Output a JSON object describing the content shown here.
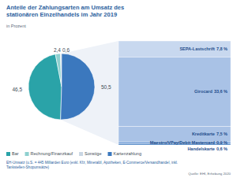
{
  "chart_data": [
    {
      "type": "pie",
      "title": "Anteile der Zahlungsarten am Umsatz des stationären Einzelhandels im Jahr 2019",
      "subtitle": "in Prozent",
      "categories": [
        "Bar",
        "Rechnung/Finanzkauf",
        "Sonstige",
        "Kartenzahlung"
      ],
      "values": [
        46.5,
        2.4,
        0.6,
        50.5
      ],
      "value_labels": [
        "46,5",
        "2,4",
        "0,6",
        "50,5"
      ],
      "colors": [
        "#2aa3a8",
        "#8fd0cf",
        "#c9d6e3",
        "#3b78be"
      ],
      "data_labels": true,
      "legend": "bottom",
      "note": "EH-Umsatz (u.S. = 445 Milliarden Euro (exkl. Kfz, Mineralöl, Apotheken, E-Commerce/Versandhandel, inkl. Tankstellen-Shopumsätze)",
      "source": "Quelle: EHI, Erhebung 2020"
    },
    {
      "type": "bar",
      "stacked": true,
      "categories": [
        "SEPA-Lastschrift",
        "Girocard",
        "Kreditkarte",
        "Maestro/VPay/Debit Mastercard",
        "Handelskarte"
      ],
      "values": [
        7.8,
        33.6,
        7.5,
        0.9,
        0.6
      ],
      "value_labels": [
        "7,8 %",
        "33,6 %",
        "7,5 %",
        "0,9 %",
        "0,6 %"
      ],
      "colors": [
        "#c8d8ef",
        "#a9c2e6",
        "#a9c2e6",
        "#7ea6db",
        "#3b78be"
      ],
      "data_labels": true,
      "tick_labels": false
    }
  ]
}
